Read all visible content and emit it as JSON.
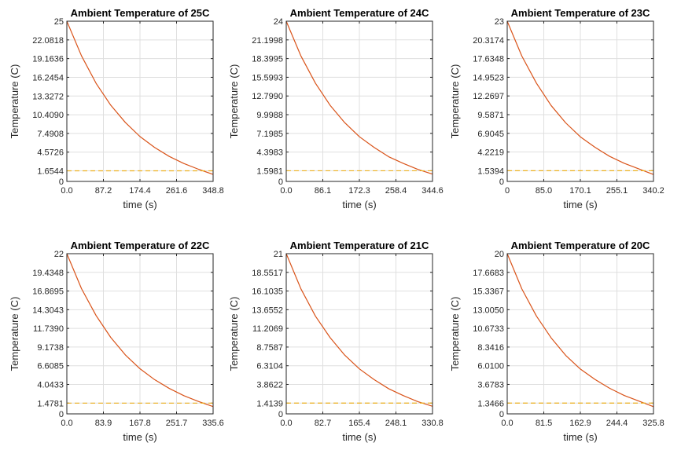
{
  "figure": {
    "xlabel": "time (s)",
    "ylabel": "Temperature (C)"
  },
  "colors": {
    "curve": "#D95319",
    "threshold": "#EDB120",
    "grid": "#DFDFDF",
    "axes": "#262626"
  },
  "chart_data": [
    {
      "type": "line",
      "title": "Ambient Temperature of 25C",
      "xlabel": "time (s)",
      "ylabel": "Temperature (C)",
      "xlim": [
        0,
        348.8
      ],
      "ylim": [
        0,
        25
      ],
      "x_ticks": [
        "0.0",
        "87.2",
        "174.4",
        "261.6",
        "348.8"
      ],
      "y_ticks": [
        "0",
        "1.6544",
        "4.5726",
        "7.4908",
        "10.4090",
        "13.3272",
        "16.2454",
        "19.1636",
        "22.0818",
        "25"
      ],
      "grid": true,
      "series": [
        {
          "style": "solid",
          "x": [
            0,
            34.9,
            69.8,
            104.6,
            139.5,
            174.4,
            209.3,
            244.2,
            279.0,
            313.9,
            348.8
          ],
          "y": [
            25,
            19.6,
            15.3,
            11.9,
            9.2,
            7.0,
            5.3,
            3.9,
            2.8,
            1.9,
            1.1
          ]
        },
        {
          "style": "dashed",
          "x": [
            0,
            348.8
          ],
          "y": [
            1.6544,
            1.6544
          ]
        }
      ]
    },
    {
      "type": "line",
      "title": "Ambient Temperature of 24C",
      "xlabel": "time (s)",
      "ylabel": "Temperature (C)",
      "xlim": [
        0,
        344.6
      ],
      "ylim": [
        0,
        24
      ],
      "x_ticks": [
        "0.0",
        "86.1",
        "172.3",
        "258.4",
        "344.6"
      ],
      "y_ticks": [
        "0",
        "1.5981",
        "4.3983",
        "7.1985",
        "9.9988",
        "12.7990",
        "15.5993",
        "18.3995",
        "21.1998",
        "24"
      ],
      "grid": true,
      "series": [
        {
          "style": "solid",
          "x": [
            0,
            34.5,
            68.9,
            103.4,
            137.8,
            172.3,
            206.8,
            241.2,
            275.7,
            310.1,
            344.6
          ],
          "y": [
            24,
            18.8,
            14.7,
            11.4,
            8.8,
            6.7,
            5.1,
            3.7,
            2.7,
            1.8,
            1.1
          ]
        },
        {
          "style": "dashed",
          "x": [
            0,
            344.6
          ],
          "y": [
            1.5981,
            1.5981
          ]
        }
      ]
    },
    {
      "type": "line",
      "title": "Ambient Temperature of 23C",
      "xlabel": "time (s)",
      "ylabel": "Temperature (C)",
      "xlim": [
        0,
        340.2
      ],
      "ylim": [
        0,
        23
      ],
      "x_ticks": [
        "0",
        "85.0",
        "170.1",
        "255.1",
        "340.2"
      ],
      "y_ticks": [
        "0",
        "1.5394",
        "4.2219",
        "6.9045",
        "9.5871",
        "12.2697",
        "14.9523",
        "17.6348",
        "20.3174",
        "23"
      ],
      "grid": true,
      "series": [
        {
          "style": "solid",
          "x": [
            0,
            34.0,
            68.0,
            102.1,
            136.1,
            170.1,
            204.1,
            238.1,
            272.2,
            306.2,
            340.2
          ],
          "y": [
            23,
            18.0,
            14.1,
            10.9,
            8.4,
            6.4,
            4.9,
            3.6,
            2.6,
            1.8,
            1.0
          ]
        },
        {
          "style": "dashed",
          "x": [
            0,
            340.2
          ],
          "y": [
            1.5394,
            1.5394
          ]
        }
      ]
    },
    {
      "type": "line",
      "title": "Ambient Temperature of 22C",
      "xlabel": "time (s)",
      "ylabel": "Temperature (C)",
      "xlim": [
        0,
        335.6
      ],
      "ylim": [
        0,
        22
      ],
      "x_ticks": [
        "0.0",
        "83.9",
        "167.8",
        "251.7",
        "335.6"
      ],
      "y_ticks": [
        "0",
        "1.4781",
        "4.0433",
        "6.6085",
        "9.1738",
        "11.7390",
        "14.3043",
        "16.8695",
        "19.4348",
        "22"
      ],
      "grid": true,
      "series": [
        {
          "style": "solid",
          "x": [
            0,
            33.6,
            67.1,
            100.7,
            134.2,
            167.8,
            201.4,
            234.9,
            268.5,
            302.0,
            335.6
          ],
          "y": [
            22,
            17.2,
            13.5,
            10.5,
            8.1,
            6.2,
            4.7,
            3.5,
            2.5,
            1.7,
            1.0
          ]
        },
        {
          "style": "dashed",
          "x": [
            0,
            335.6
          ],
          "y": [
            1.4781,
            1.4781
          ]
        }
      ]
    },
    {
      "type": "line",
      "title": "Ambient Temperature of 21C",
      "xlabel": "time (s)",
      "ylabel": "Temperature (C)",
      "xlim": [
        0,
        330.8
      ],
      "ylim": [
        0,
        21
      ],
      "x_ticks": [
        "0.0",
        "82.7",
        "165.4",
        "248.1",
        "330.8"
      ],
      "y_ticks": [
        "0",
        "1.4139",
        "3.8622",
        "6.3104",
        "8.7587",
        "11.2069",
        "13.6552",
        "16.1035",
        "18.5517",
        "21"
      ],
      "grid": true,
      "series": [
        {
          "style": "solid",
          "x": [
            0,
            33.1,
            66.2,
            99.2,
            132.3,
            165.4,
            198.5,
            231.6,
            264.6,
            297.7,
            330.8
          ],
          "y": [
            21,
            16.4,
            12.8,
            10.0,
            7.7,
            5.9,
            4.5,
            3.3,
            2.4,
            1.6,
            1.0
          ]
        },
        {
          "style": "dashed",
          "x": [
            0,
            330.8
          ],
          "y": [
            1.4139,
            1.4139
          ]
        }
      ]
    },
    {
      "type": "line",
      "title": "Ambient Temperature of 20C",
      "xlabel": "time (s)",
      "ylabel": "Temperature (C)",
      "xlim": [
        0,
        325.8
      ],
      "ylim": [
        0,
        20
      ],
      "x_ticks": [
        "0.0",
        "81.5",
        "162.9",
        "244.4",
        "325.8"
      ],
      "y_ticks": [
        "0",
        "1.3466",
        "3.6783",
        "6.0100",
        "8.3416",
        "10.6733",
        "13.0050",
        "15.3367",
        "17.6683",
        "20"
      ],
      "grid": true,
      "series": [
        {
          "style": "solid",
          "x": [
            0,
            32.6,
            65.2,
            97.7,
            130.3,
            162.9,
            195.5,
            228.1,
            260.6,
            293.2,
            325.8
          ],
          "y": [
            20,
            15.6,
            12.2,
            9.5,
            7.3,
            5.6,
            4.3,
            3.2,
            2.3,
            1.6,
            0.9
          ]
        },
        {
          "style": "dashed",
          "x": [
            0,
            325.8
          ],
          "y": [
            1.3466,
            1.3466
          ]
        }
      ]
    }
  ]
}
